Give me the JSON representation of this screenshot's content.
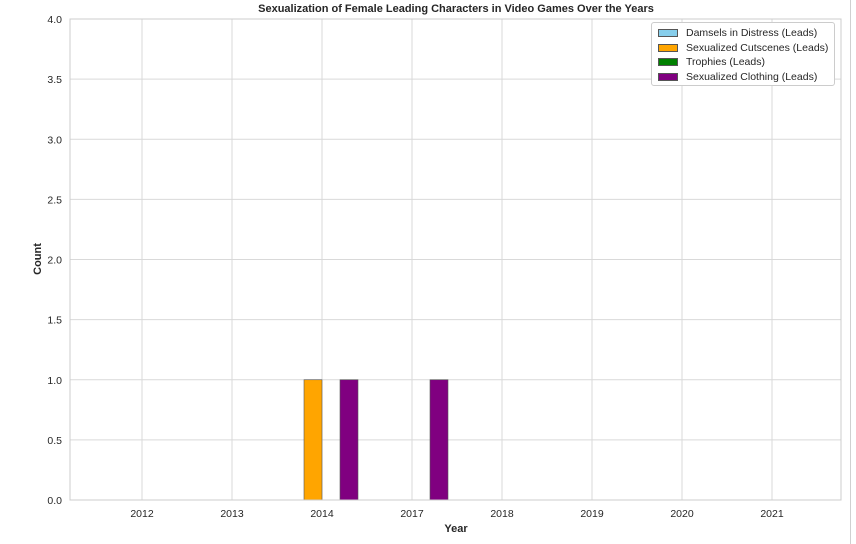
{
  "chart_data": {
    "type": "bar",
    "title": "Sexualization of Female Leading Characters in Video Games Over the Years",
    "xlabel": "Year",
    "ylabel": "Count",
    "categories": [
      "2012",
      "2013",
      "2014",
      "2017",
      "2018",
      "2019",
      "2020",
      "2021"
    ],
    "ylim": [
      0,
      4
    ],
    "yticks": [
      "0.0",
      "0.5",
      "1.0",
      "1.5",
      "2.0",
      "2.5",
      "3.0",
      "3.5",
      "4.0"
    ],
    "grid": true,
    "legend_position": "top-right",
    "series": [
      {
        "name": "Damsels in Distress (Leads)",
        "color": "#87ceeb",
        "values": [
          0,
          0,
          0,
          0,
          0,
          0,
          0,
          0
        ]
      },
      {
        "name": "Sexualized Cutscenes (Leads)",
        "color": "#ffa500",
        "values": [
          0,
          0,
          1,
          0,
          0,
          0,
          0,
          0
        ]
      },
      {
        "name": "Trophies (Leads)",
        "color": "#008000",
        "values": [
          0,
          0,
          0,
          0,
          0,
          0,
          0,
          0
        ]
      },
      {
        "name": "Sexualized Clothing (Leads)",
        "color": "#800080",
        "values": [
          0,
          0,
          1,
          1,
          0,
          0,
          0,
          0
        ]
      }
    ]
  }
}
